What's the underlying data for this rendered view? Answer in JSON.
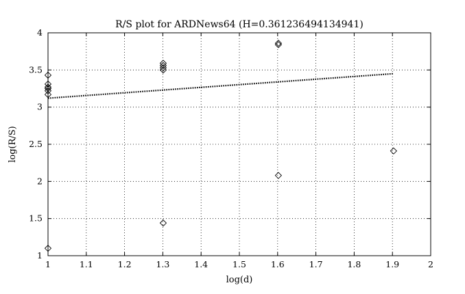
{
  "chart_data": {
    "type": "scatter",
    "title": "R/S plot for ARDNews64 (H=0.361236494134941)",
    "xlabel": "log(d)",
    "ylabel": "log(R/S)",
    "xlim": [
      1,
      2
    ],
    "ylim": [
      1,
      4
    ],
    "xticks": [
      1,
      1.1,
      1.2,
      1.3,
      1.4,
      1.5,
      1.6,
      1.7,
      1.8,
      1.9,
      2
    ],
    "xtick_labels": [
      "1",
      "1.1",
      "1.2",
      "1.3",
      "1.4",
      "1.5",
      "1.6",
      "1.7",
      "1.8",
      "1.9",
      "2"
    ],
    "yticks": [
      1,
      1.5,
      2,
      2.5,
      3,
      3.5,
      4
    ],
    "ytick_labels": [
      "1",
      "1.5",
      "2",
      "2.5",
      "3",
      "3.5",
      "4"
    ],
    "grid": true,
    "series": [
      {
        "marker": "diamond",
        "points": [
          [
            1.0,
            1.1
          ],
          [
            1.0,
            3.17
          ],
          [
            1.0,
            3.22
          ],
          [
            1.0,
            3.25
          ],
          [
            1.0,
            3.27
          ],
          [
            1.0,
            3.31
          ],
          [
            1.0,
            3.43
          ],
          [
            1.301,
            1.44
          ],
          [
            1.301,
            3.5
          ],
          [
            1.301,
            3.53
          ],
          [
            1.301,
            3.56
          ],
          [
            1.301,
            3.59
          ],
          [
            1.602,
            2.08
          ],
          [
            1.602,
            3.84
          ],
          [
            1.602,
            3.86
          ],
          [
            1.903,
            2.41
          ]
        ]
      }
    ],
    "fit_line": {
      "style": "dotted",
      "points": [
        [
          1.0,
          3.12
        ],
        [
          1.903,
          3.45
        ]
      ]
    }
  }
}
